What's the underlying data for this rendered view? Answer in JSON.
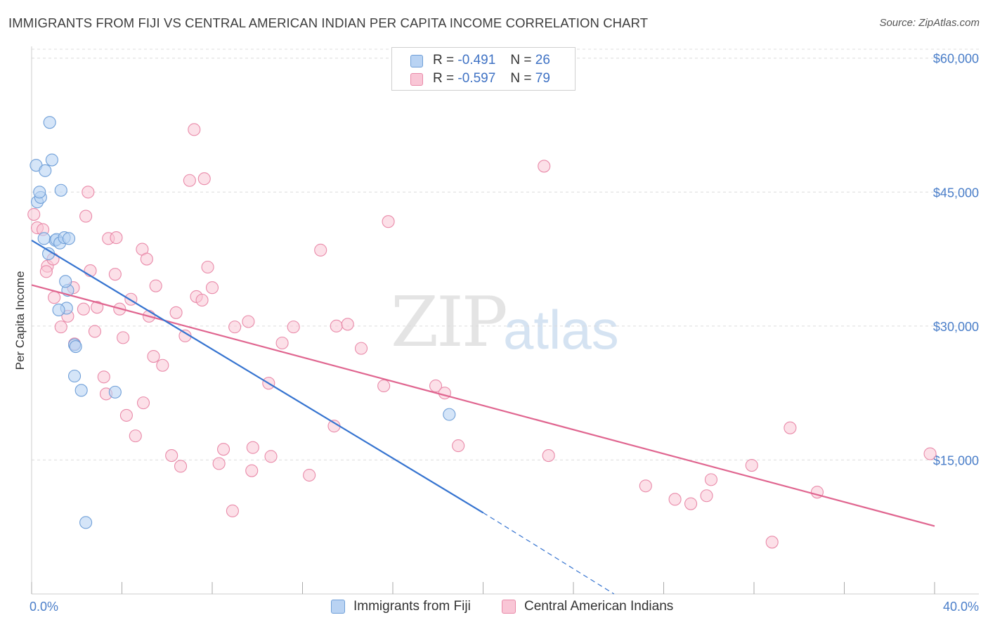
{
  "title": "IMMIGRANTS FROM FIJI VS CENTRAL AMERICAN INDIAN PER CAPITA INCOME CORRELATION CHART",
  "source": "Source: ZipAtlas.com",
  "watermark": {
    "zip": "ZIP",
    "atlas": "atlas"
  },
  "legend": {
    "fiji": {
      "r_label": "R =",
      "r_value": "-0.491",
      "n_label": "N =",
      "n_value": "26"
    },
    "cai": {
      "r_label": "R =",
      "r_value": "-0.597",
      "n_label": "N =",
      "n_value": "79"
    }
  },
  "colors": {
    "fiji_fill": "#b9d3f3",
    "fiji_stroke": "#6f9fd8",
    "fiji_line": "#3674d0",
    "cai_fill": "#f9c6d6",
    "cai_stroke": "#e98aa9",
    "cai_line": "#e06690",
    "grid": "#dcdcdc",
    "tick_label": "#4a7ec9"
  },
  "chart_data": {
    "type": "scatter",
    "title": "IMMIGRANTS FROM FIJI VS CENTRAL AMERICAN INDIAN PER CAPITA INCOME CORRELATION CHART",
    "xlabel": "",
    "ylabel": "Per Capita Income",
    "xlim": [
      0,
      40
    ],
    "ylim": [
      0,
      61000
    ],
    "x_tick_labels": [
      "0.0%",
      "40.0%"
    ],
    "y_ticks": [
      15000,
      30000,
      45000,
      60000
    ],
    "y_tick_labels": [
      "$15,000",
      "$30,000",
      "$45,000",
      "$60,000"
    ],
    "grid": "horizontal dashed",
    "legend_position": "top-center",
    "series": [
      {
        "name": "Immigrants from Fiji",
        "points": [
          [
            0.25,
            43.9
          ],
          [
            0.2,
            48.0
          ],
          [
            0.4,
            44.4
          ],
          [
            0.35,
            45.0
          ],
          [
            0.6,
            47.4
          ],
          [
            0.9,
            48.6
          ],
          [
            0.8,
            52.8
          ],
          [
            1.3,
            45.2
          ],
          [
            0.55,
            39.8
          ],
          [
            1.05,
            39.6
          ],
          [
            1.1,
            39.7
          ],
          [
            1.25,
            39.3
          ],
          [
            1.45,
            39.9
          ],
          [
            1.65,
            39.8
          ],
          [
            0.75,
            38.1
          ],
          [
            1.55,
            32.0
          ],
          [
            1.6,
            34.0
          ],
          [
            1.5,
            35.0
          ],
          [
            1.2,
            31.8
          ],
          [
            1.9,
            27.9
          ],
          [
            1.95,
            27.7
          ],
          [
            1.9,
            24.4
          ],
          [
            2.2,
            22.8
          ],
          [
            3.7,
            22.6
          ],
          [
            18.5,
            20.1
          ],
          [
            2.4,
            8.0
          ]
        ],
        "trend": {
          "x": [
            0,
            20
          ],
          "y": [
            39.6,
            9.1
          ],
          "dashed_extension": {
            "x": [
              20,
              25.8
            ],
            "y": [
              9.1,
              0
            ]
          }
        }
      },
      {
        "name": "Central American Indians",
        "points": [
          [
            0.1,
            42.5
          ],
          [
            0.25,
            41.0
          ],
          [
            0.5,
            40.8
          ],
          [
            0.7,
            36.7
          ],
          [
            0.65,
            36.1
          ],
          [
            0.95,
            37.5
          ],
          [
            1.0,
            33.2
          ],
          [
            1.3,
            29.9
          ],
          [
            1.6,
            31.1
          ],
          [
            1.85,
            34.3
          ],
          [
            1.9,
            28.0
          ],
          [
            2.3,
            31.9
          ],
          [
            2.4,
            42.3
          ],
          [
            2.5,
            45.0
          ],
          [
            2.6,
            36.2
          ],
          [
            2.8,
            29.4
          ],
          [
            2.9,
            32.1
          ],
          [
            3.2,
            24.3
          ],
          [
            3.3,
            22.4
          ],
          [
            3.4,
            39.8
          ],
          [
            3.75,
            39.9
          ],
          [
            3.7,
            35.8
          ],
          [
            3.9,
            31.9
          ],
          [
            4.05,
            28.7
          ],
          [
            4.2,
            20.0
          ],
          [
            4.4,
            33.0
          ],
          [
            4.6,
            17.7
          ],
          [
            4.9,
            38.6
          ],
          [
            4.95,
            21.4
          ],
          [
            5.1,
            37.5
          ],
          [
            5.2,
            31.1
          ],
          [
            5.4,
            26.6
          ],
          [
            5.5,
            34.5
          ],
          [
            5.8,
            25.6
          ],
          [
            6.2,
            15.5
          ],
          [
            6.4,
            31.5
          ],
          [
            6.6,
            14.3
          ],
          [
            6.8,
            28.9
          ],
          [
            7.0,
            46.3
          ],
          [
            7.2,
            52.0
          ],
          [
            7.3,
            33.3
          ],
          [
            7.55,
            32.9
          ],
          [
            7.65,
            46.5
          ],
          [
            7.8,
            36.6
          ],
          [
            8.0,
            34.3
          ],
          [
            8.3,
            14.6
          ],
          [
            8.5,
            16.2
          ],
          [
            8.9,
            9.3
          ],
          [
            9.0,
            29.9
          ],
          [
            9.6,
            30.5
          ],
          [
            9.75,
            13.8
          ],
          [
            9.8,
            16.4
          ],
          [
            10.5,
            23.6
          ],
          [
            10.6,
            15.4
          ],
          [
            11.1,
            28.1
          ],
          [
            11.6,
            29.9
          ],
          [
            12.3,
            13.3
          ],
          [
            12.8,
            38.5
          ],
          [
            13.4,
            18.8
          ],
          [
            13.5,
            30.0
          ],
          [
            14.6,
            27.5
          ],
          [
            15.6,
            23.3
          ],
          [
            15.8,
            41.7
          ],
          [
            17.9,
            23.3
          ],
          [
            18.3,
            22.5
          ],
          [
            18.9,
            16.6
          ],
          [
            22.7,
            47.9
          ],
          [
            22.9,
            15.5
          ],
          [
            27.2,
            12.1
          ],
          [
            28.5,
            10.6
          ],
          [
            29.2,
            10.1
          ],
          [
            29.9,
            11.0
          ],
          [
            30.1,
            12.8
          ],
          [
            31.9,
            14.4
          ],
          [
            32.8,
            5.8
          ],
          [
            33.6,
            18.6
          ],
          [
            34.8,
            11.4
          ],
          [
            39.8,
            15.7
          ],
          [
            14.0,
            30.2
          ]
        ],
        "trend": {
          "x": [
            0,
            40
          ],
          "y": [
            34.6,
            7.6
          ]
        }
      }
    ],
    "y_units_note": "y values in thousands of dollars"
  },
  "bottom_legend": {
    "fiji_label": "Immigrants from Fiji",
    "cai_label": "Central American Indians"
  }
}
